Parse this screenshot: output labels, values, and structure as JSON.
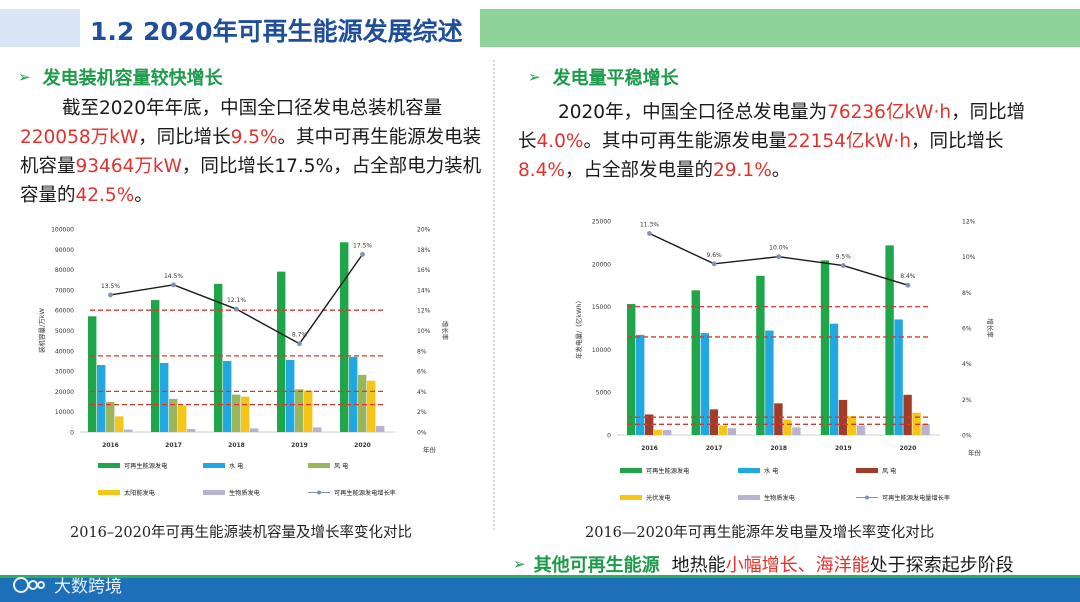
{
  "header": {
    "title": "1.2  2020年可再生能源发展综述"
  },
  "left": {
    "bullet": "发电装机容量较快增长",
    "paragraph": [
      {
        "t": "截至2020年年底，中国全口径发电总装机容量",
        "hl": false
      },
      {
        "t": "220058万kW",
        "hl": true
      },
      {
        "t": "，同比增长",
        "hl": false
      },
      {
        "t": "9.5%",
        "hl": true
      },
      {
        "t": "。其中可再生能源发电装机容量",
        "hl": false
      },
      {
        "t": "93464万kW",
        "hl": true
      },
      {
        "t": "，同比增长17.5%，占全部电力装机容量的",
        "hl": false
      },
      {
        "t": "42.5%",
        "hl": true
      },
      {
        "t": "。",
        "hl": false
      }
    ],
    "caption": "2016–2020年可再生能源装机容量及增长率变化对比"
  },
  "right": {
    "bullet": "发电量平稳增长",
    "paragraph": [
      {
        "t": "2020年，中国全口径总发电量为",
        "hl": false
      },
      {
        "t": "76236亿kW·h",
        "hl": true
      },
      {
        "t": "，同比增长",
        "hl": false
      },
      {
        "t": "4.0%",
        "hl": true
      },
      {
        "t": "。其中可再生能源发电量",
        "hl": false
      },
      {
        "t": "22154亿kW·h",
        "hl": true
      },
      {
        "t": "，同比增长",
        "hl": false
      },
      {
        "t": "8.4%",
        "hl": true
      },
      {
        "t": "，占全部发电量的",
        "hl": false
      },
      {
        "t": "29.1%",
        "hl": true
      },
      {
        "t": "。",
        "hl": false
      }
    ],
    "caption": "2016—2020年可再生能源年发电量及增长率变化对比"
  },
  "other": {
    "title": "其他可再生能源",
    "segments": [
      {
        "t": "地热能",
        "hl": false
      },
      {
        "t": "小幅增长、海洋能",
        "hl": true
      },
      {
        "t": "处于探索起步阶段",
        "hl": false
      }
    ]
  },
  "watermark": {
    "text": "大数跨境"
  },
  "icons": {
    "arrow": "arrow-right-icon",
    "logo": "logo-icon"
  },
  "colors": {
    "renewable": "#1fa64a",
    "hydro": "#22a8e0",
    "wind": "#9bb55a",
    "solar": "#f5c518",
    "bio": "#b9b3d3",
    "windGen": "#a33b2a",
    "line": "#1a1a1a",
    "marker": "#7f8fb5",
    "refLine": "#d9382e"
  },
  "chart_data": [
    {
      "type": "bar",
      "categories": [
        "2016",
        "2017",
        "2018",
        "2019",
        "2020"
      ],
      "xlabel": "年份",
      "ylabel": "装机容量/万kW",
      "ylabel2": "增长率",
      "ylim": [
        0,
        100000
      ],
      "yticks": [
        "0",
        "10000",
        "20000",
        "30000",
        "40000",
        "50000",
        "60000",
        "70000",
        "80000",
        "90000",
        "100000"
      ],
      "y2lim": [
        0,
        20
      ],
      "y2ticks": [
        "0%",
        "2%",
        "4%",
        "6%",
        "8%",
        "10%",
        "12%",
        "14%",
        "16%",
        "18%",
        "20%"
      ],
      "series": [
        {
          "name": "可再生能源发电",
          "colorKey": "renewable",
          "values": [
            57000,
            65000,
            73000,
            79000,
            93464
          ]
        },
        {
          "name": "水  电",
          "colorKey": "hydro",
          "values": [
            33000,
            34000,
            35000,
            35500,
            37000
          ]
        },
        {
          "name": "风  电",
          "colorKey": "wind",
          "values": [
            14800,
            16300,
            18400,
            21000,
            28100
          ]
        },
        {
          "name": "太阳能发电",
          "colorKey": "solar",
          "values": [
            7700,
            13000,
            17400,
            20400,
            25300
          ]
        },
        {
          "name": "生物质发电",
          "colorKey": "bio",
          "values": [
            1200,
            1500,
            1800,
            2300,
            3000
          ]
        }
      ],
      "line": {
        "name": "可再生能源发电增长率",
        "colorKey": "line",
        "values": [
          13.5,
          14.5,
          12.1,
          8.7,
          17.5
        ],
        "labels": [
          "13.5%",
          "14.5%",
          "12.1%",
          "8.7%",
          "17.5%"
        ]
      },
      "refLines": [
        12,
        7.5,
        4,
        2.7
      ]
    },
    {
      "type": "bar",
      "categories": [
        "2016",
        "2017",
        "2018",
        "2019",
        "2020"
      ],
      "xlabel": "年份",
      "ylabel": "年发电量/（亿kWh）",
      "ylabel2": "增长率",
      "ylim": [
        0,
        25000
      ],
      "yticks": [
        "0",
        "5000",
        "10000",
        "15000",
        "20000",
        "25000"
      ],
      "y2lim": [
        0,
        12
      ],
      "y2ticks": [
        "0%",
        "2%",
        "4%",
        "6%",
        "8%",
        "10%",
        "12%"
      ],
      "series": [
        {
          "name": "可再生能源发电",
          "colorKey": "renewable",
          "values": [
            15300,
            16900,
            18600,
            20400,
            22154
          ]
        },
        {
          "name": "水  电",
          "colorKey": "hydro",
          "values": [
            11700,
            11900,
            12200,
            13000,
            13500
          ]
        },
        {
          "name": "风  电",
          "colorKey": "windGen",
          "values": [
            2400,
            3000,
            3700,
            4100,
            4700
          ]
        },
        {
          "name": "光伏发电",
          "colorKey": "solar",
          "values": [
            600,
            1100,
            1800,
            2200,
            2600
          ]
        },
        {
          "name": "生物质发电",
          "colorKey": "bio",
          "values": [
            600,
            800,
            900,
            1100,
            1300
          ]
        }
      ],
      "line": {
        "name": "可再生能源发电量增长率",
        "colorKey": "line",
        "values": [
          11.3,
          9.6,
          10.0,
          9.5,
          8.4
        ],
        "labels": [
          "11.3%",
          "9.6%",
          "10.0%",
          "9.5%",
          "8.4%"
        ]
      },
      "refLines": [
        7.2,
        5.5,
        1.0,
        0.6
      ]
    }
  ]
}
